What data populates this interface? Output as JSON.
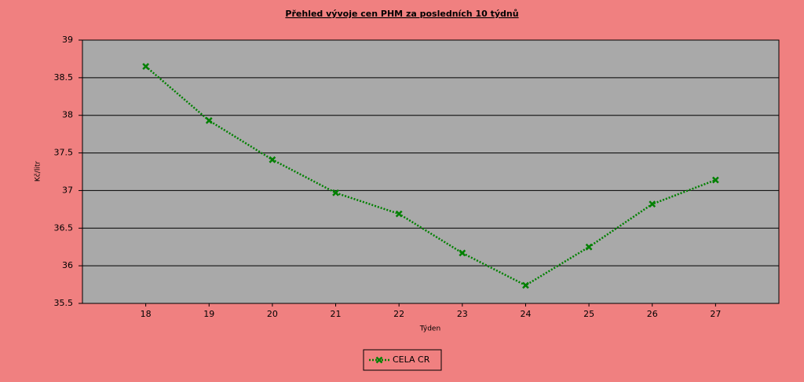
{
  "chart_data": {
    "type": "line",
    "title": "Přehled vývoje cen PHM za posledních 10 týdnů",
    "x_label": "Týden",
    "y_label": "Kč/litr",
    "x": [
      18,
      19,
      20,
      21,
      22,
      23,
      24,
      25,
      26,
      27
    ],
    "series": [
      {
        "name": "CELA CR",
        "color": "#008000",
        "values": [
          38.65,
          37.93,
          37.41,
          36.97,
          36.69,
          36.17,
          35.74,
          36.25,
          36.82,
          37.14
        ]
      }
    ],
    "xlim": [
      17,
      28
    ],
    "xticks": [
      18,
      19,
      20,
      21,
      22,
      23,
      24,
      25,
      26,
      27
    ],
    "ylim": [
      35.5,
      39
    ],
    "yticks": [
      35.5,
      36,
      36.5,
      37,
      37.5,
      38,
      38.5,
      39
    ],
    "grid": true,
    "legend": "bottom"
  }
}
